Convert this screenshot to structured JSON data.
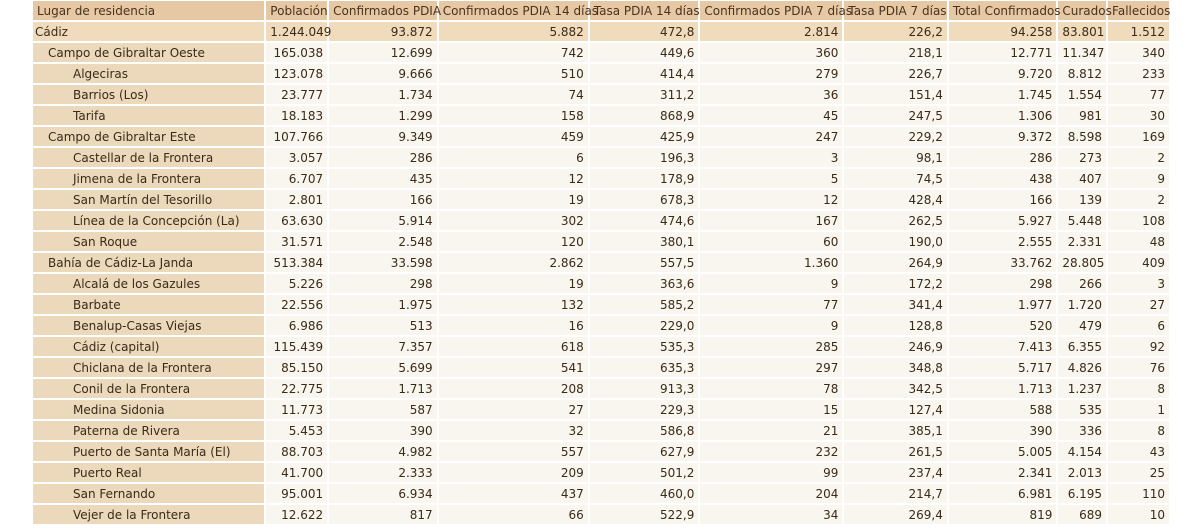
{
  "columns": [
    "Lugar de residencia",
    "Población",
    "Confirmados PDIA",
    "Confirmados PDIA 14 días",
    "Tasa PDIA 14 días",
    "Confirmados PDIA 7 días",
    "Tasa PDIA 7 días",
    "Total Confirmados",
    "Curados",
    "Fallecidos"
  ],
  "rows": [
    {
      "level": 0,
      "cells": [
        "Cádiz",
        "1.244.049",
        "93.872",
        "5.882",
        "472,8",
        "2.814",
        "226,2",
        "94.258",
        "83.801",
        "1.512"
      ]
    },
    {
      "level": 1,
      "cells": [
        "Campo de Gibraltar Oeste",
        "165.038",
        "12.699",
        "742",
        "449,6",
        "360",
        "218,1",
        "12.771",
        "11.347",
        "340"
      ]
    },
    {
      "level": 2,
      "cells": [
        "Algeciras",
        "123.078",
        "9.666",
        "510",
        "414,4",
        "279",
        "226,7",
        "9.720",
        "8.812",
        "233"
      ]
    },
    {
      "level": 2,
      "cells": [
        "Barrios (Los)",
        "23.777",
        "1.734",
        "74",
        "311,2",
        "36",
        "151,4",
        "1.745",
        "1.554",
        "77"
      ]
    },
    {
      "level": 2,
      "cells": [
        "Tarifa",
        "18.183",
        "1.299",
        "158",
        "868,9",
        "45",
        "247,5",
        "1.306",
        "981",
        "30"
      ]
    },
    {
      "level": 1,
      "cells": [
        "Campo de Gibraltar Este",
        "107.766",
        "9.349",
        "459",
        "425,9",
        "247",
        "229,2",
        "9.372",
        "8.598",
        "169"
      ]
    },
    {
      "level": 2,
      "cells": [
        "Castellar de la Frontera",
        "3.057",
        "286",
        "6",
        "196,3",
        "3",
        "98,1",
        "286",
        "273",
        "2"
      ]
    },
    {
      "level": 2,
      "cells": [
        "Jimena de la Frontera",
        "6.707",
        "435",
        "12",
        "178,9",
        "5",
        "74,5",
        "438",
        "407",
        "9"
      ]
    },
    {
      "level": 2,
      "cells": [
        "San Martín del Tesorillo",
        "2.801",
        "166",
        "19",
        "678,3",
        "12",
        "428,4",
        "166",
        "139",
        "2"
      ]
    },
    {
      "level": 2,
      "cells": [
        "Línea de la Concepción (La)",
        "63.630",
        "5.914",
        "302",
        "474,6",
        "167",
        "262,5",
        "5.927",
        "5.448",
        "108"
      ]
    },
    {
      "level": 2,
      "cells": [
        "San Roque",
        "31.571",
        "2.548",
        "120",
        "380,1",
        "60",
        "190,0",
        "2.555",
        "2.331",
        "48"
      ]
    },
    {
      "level": 1,
      "cells": [
        "Bahía de Cádiz-La Janda",
        "513.384",
        "33.598",
        "2.862",
        "557,5",
        "1.360",
        "264,9",
        "33.762",
        "28.805",
        "409"
      ]
    },
    {
      "level": 2,
      "cells": [
        "Alcalá de los Gazules",
        "5.226",
        "298",
        "19",
        "363,6",
        "9",
        "172,2",
        "298",
        "266",
        "3"
      ]
    },
    {
      "level": 2,
      "cells": [
        "Barbate",
        "22.556",
        "1.975",
        "132",
        "585,2",
        "77",
        "341,4",
        "1.977",
        "1.720",
        "27"
      ]
    },
    {
      "level": 2,
      "cells": [
        "Benalup-Casas Viejas",
        "6.986",
        "513",
        "16",
        "229,0",
        "9",
        "128,8",
        "520",
        "479",
        "6"
      ]
    },
    {
      "level": 2,
      "cells": [
        "Cádiz (capital)",
        "115.439",
        "7.357",
        "618",
        "535,3",
        "285",
        "246,9",
        "7.413",
        "6.355",
        "92"
      ]
    },
    {
      "level": 2,
      "cells": [
        "Chiclana de la Frontera",
        "85.150",
        "5.699",
        "541",
        "635,3",
        "297",
        "348,8",
        "5.717",
        "4.826",
        "76"
      ]
    },
    {
      "level": 2,
      "cells": [
        "Conil de la Frontera",
        "22.775",
        "1.713",
        "208",
        "913,3",
        "78",
        "342,5",
        "1.713",
        "1.237",
        "8"
      ]
    },
    {
      "level": 2,
      "cells": [
        "Medina Sidonia",
        "11.773",
        "587",
        "27",
        "229,3",
        "15",
        "127,4",
        "588",
        "535",
        "1"
      ]
    },
    {
      "level": 2,
      "cells": [
        "Paterna de Rivera",
        "5.453",
        "390",
        "32",
        "586,8",
        "21",
        "385,1",
        "390",
        "336",
        "8"
      ]
    },
    {
      "level": 2,
      "cells": [
        "Puerto de Santa María (El)",
        "88.703",
        "4.982",
        "557",
        "627,9",
        "232",
        "261,5",
        "5.005",
        "4.154",
        "43"
      ]
    },
    {
      "level": 2,
      "cells": [
        "Puerto Real",
        "41.700",
        "2.333",
        "209",
        "501,2",
        "99",
        "237,4",
        "2.341",
        "2.013",
        "25"
      ]
    },
    {
      "level": 2,
      "cells": [
        "San Fernando",
        "95.001",
        "6.934",
        "437",
        "460,0",
        "204",
        "214,7",
        "6.981",
        "6.195",
        "110"
      ]
    },
    {
      "level": 2,
      "cells": [
        "Vejer de la Frontera",
        "12.622",
        "817",
        "66",
        "522,9",
        "34",
        "269,4",
        "819",
        "689",
        "10"
      ]
    }
  ]
}
